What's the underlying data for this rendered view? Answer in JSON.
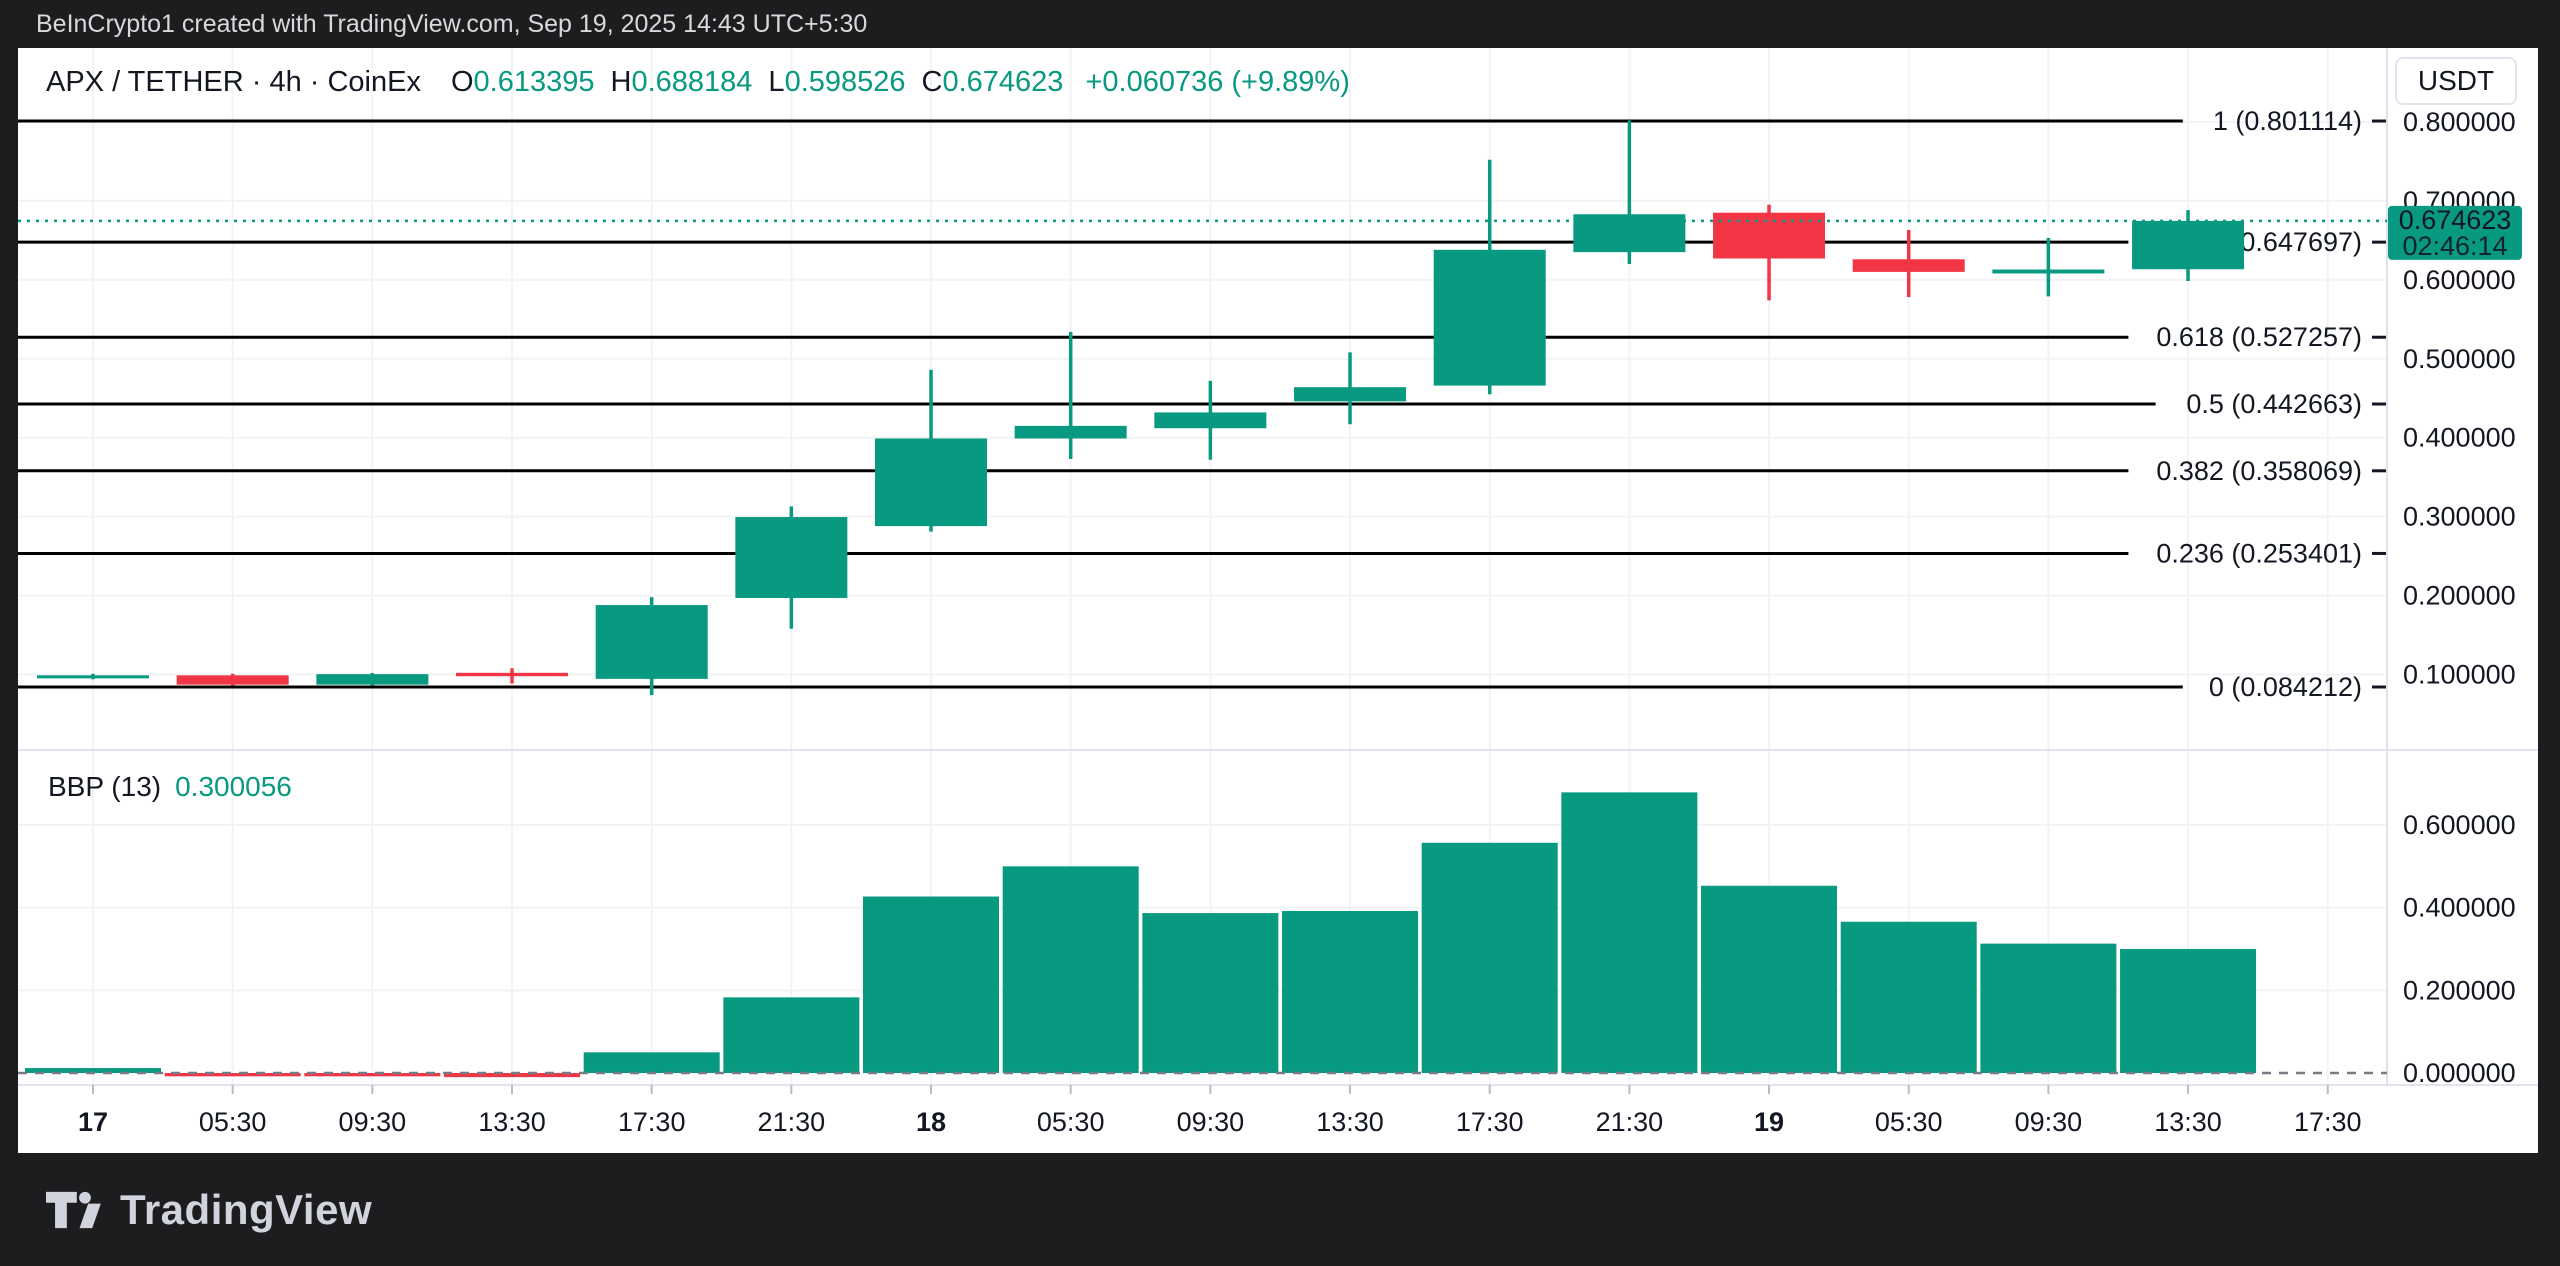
{
  "attribution": {
    "text": "BeInCrypto1 created with TradingView.com, Sep 19, 2025 14:43 UTC+5:30"
  },
  "symbol_header": {
    "title": "APX / TETHER · 4h · CoinEx",
    "ohlc": [
      {
        "label": "O",
        "value": "0.613395"
      },
      {
        "label": "H",
        "value": "0.688184"
      },
      {
        "label": "L",
        "value": "0.598526"
      },
      {
        "label": "C",
        "value": "0.674623"
      }
    ],
    "change": "+0.060736 (+9.89%)"
  },
  "currency_button": {
    "label": "USDT"
  },
  "indicator": {
    "label": "BBP (13)",
    "value_label": "0.300056"
  },
  "price_badge": {
    "price": "0.674623",
    "countdown": "02:46:14",
    "value": 0.674623
  },
  "price_axis": [
    {
      "label": "0.800000",
      "value": 0.8
    },
    {
      "label": "0.700000",
      "value": 0.7
    },
    {
      "label": "0.600000",
      "value": 0.6
    },
    {
      "label": "0.500000",
      "value": 0.5
    },
    {
      "label": "0.400000",
      "value": 0.4
    },
    {
      "label": "0.300000",
      "value": 0.3
    },
    {
      "label": "0.200000",
      "value": 0.2
    },
    {
      "label": "0.100000",
      "value": 0.1
    }
  ],
  "bbp_axis": [
    {
      "label": "0.600000",
      "value": 0.6
    },
    {
      "label": "0.400000",
      "value": 0.4
    },
    {
      "label": "0.200000",
      "value": 0.2
    },
    {
      "label": "0.000000",
      "value": 0.0
    }
  ],
  "fib_levels": [
    {
      "label": "1 (0.801114)",
      "value": 0.801114
    },
    {
      "label": "0.786 (0.647697)",
      "value": 0.647697
    },
    {
      "label": "0.618 (0.527257)",
      "value": 0.527257
    },
    {
      "label": "0.5 (0.442663)",
      "value": 0.442663
    },
    {
      "label": "0.382 (0.358069)",
      "value": 0.358069
    },
    {
      "label": "0.236 (0.253401)",
      "value": 0.253401
    },
    {
      "label": "0 (0.084212)",
      "value": 0.084212
    }
  ],
  "time_axis": [
    {
      "label": "17",
      "bold": true
    },
    {
      "label": "05:30",
      "bold": false
    },
    {
      "label": "09:30",
      "bold": false
    },
    {
      "label": "13:30",
      "bold": false
    },
    {
      "label": "17:30",
      "bold": false
    },
    {
      "label": "21:30",
      "bold": false
    },
    {
      "label": "18",
      "bold": true
    },
    {
      "label": "05:30",
      "bold": false
    },
    {
      "label": "09:30",
      "bold": false
    },
    {
      "label": "13:30",
      "bold": false
    },
    {
      "label": "17:30",
      "bold": false
    },
    {
      "label": "21:30",
      "bold": false
    },
    {
      "label": "19",
      "bold": true
    },
    {
      "label": "05:30",
      "bold": false
    },
    {
      "label": "09:30",
      "bold": false
    },
    {
      "label": "13:30",
      "bold": false
    },
    {
      "label": "17:30",
      "bold": false
    }
  ],
  "chart_data": {
    "type": "candlestick",
    "symbol": "APX / TETHER",
    "interval": "4h",
    "exchange": "CoinEx",
    "main_ylim": [
      0.0045,
      0.8936
    ],
    "indicator_ylim": [
      -0.03,
      0.78
    ],
    "grid": true,
    "candles": [
      {
        "t": "17",
        "o": 0.0955,
        "h": 0.101,
        "l": 0.094,
        "c": 0.099
      },
      {
        "t": "05:30",
        "o": 0.099,
        "h": 0.101,
        "l": 0.086,
        "c": 0.0872
      },
      {
        "t": "09:30",
        "o": 0.0872,
        "h": 0.102,
        "l": 0.086,
        "c": 0.1005
      },
      {
        "t": "13:30",
        "o": 0.1022,
        "h": 0.108,
        "l": 0.0886,
        "c": 0.0979
      },
      {
        "t": "17:30",
        "o": 0.0945,
        "h": 0.198,
        "l": 0.074,
        "c": 0.188
      },
      {
        "t": "21:30",
        "o": 0.197,
        "h": 0.313,
        "l": 0.158,
        "c": 0.2995
      },
      {
        "t": "18",
        "o": 0.288,
        "h": 0.486,
        "l": 0.281,
        "c": 0.399
      },
      {
        "t": "05:30",
        "o": 0.399,
        "h": 0.534,
        "l": 0.373,
        "c": 0.415
      },
      {
        "t": "09:30",
        "o": 0.412,
        "h": 0.472,
        "l": 0.372,
        "c": 0.432
      },
      {
        "t": "13:30",
        "o": 0.446,
        "h": 0.508,
        "l": 0.417,
        "c": 0.464
      },
      {
        "t": "17:30",
        "o": 0.466,
        "h": 0.752,
        "l": 0.455,
        "c": 0.638
      },
      {
        "t": "21:30",
        "o": 0.635,
        "h": 0.802,
        "l": 0.62,
        "c": 0.683
      },
      {
        "t": "19",
        "o": 0.685,
        "h": 0.695,
        "l": 0.574,
        "c": 0.627
      },
      {
        "t": "05:30",
        "o": 0.626,
        "h": 0.663,
        "l": 0.578,
        "c": 0.61
      },
      {
        "t": "09:30",
        "o": 0.608,
        "h": 0.653,
        "l": 0.579,
        "c": 0.613
      },
      {
        "t": "13:30",
        "o": 0.613395,
        "h": 0.688184,
        "l": 0.598526,
        "c": 0.674623
      }
    ],
    "indicator_series": {
      "name": "BBP",
      "length": 13,
      "type": "histogram",
      "values": [
        0.012,
        -0.008,
        -0.008,
        -0.01,
        0.05,
        0.183,
        0.427,
        0.5,
        0.387,
        0.392,
        0.557,
        0.679,
        0.453,
        0.366,
        0.313,
        0.300056
      ]
    }
  },
  "colors": {
    "up": "#089981",
    "down": "#f23645",
    "fib_line": "#000000",
    "grid": "#f2f3f5",
    "separator": "#e0e3eb",
    "zero_line": "#787b86",
    "text": "#131722",
    "badge_bg": "#089981",
    "dark_bg": "#1d1d20"
  },
  "footer": {
    "brand": "TradingView"
  }
}
